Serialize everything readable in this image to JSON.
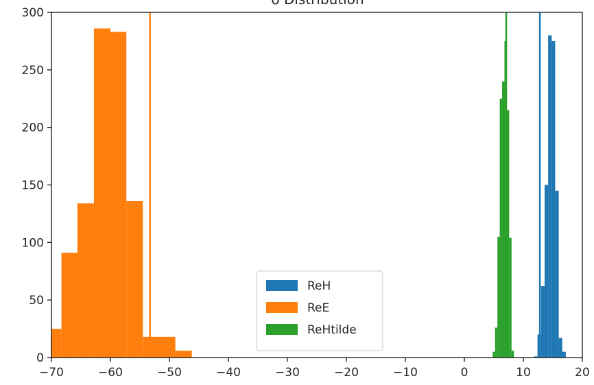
{
  "chart_data": {
    "type": "histogram",
    "title": "δ Distribution",
    "xlabel": "",
    "ylabel": "",
    "xlim": [
      -70,
      20
    ],
    "ylim": [
      0,
      300
    ],
    "xticks": [
      -70,
      -60,
      -50,
      -40,
      -30,
      -20,
      -10,
      0,
      10,
      20
    ],
    "yticks": [
      0,
      50,
      100,
      150,
      200,
      250,
      300
    ],
    "grid": false,
    "legend": {
      "position": "bottom-center"
    },
    "series": [
      {
        "name": "ReH",
        "color": "#1f77b4",
        "bins": [
          {
            "x0": 11.8,
            "x1": 12.4,
            "count": 1
          },
          {
            "x0": 12.4,
            "x1": 13.0,
            "count": 20
          },
          {
            "x0": 13.0,
            "x1": 13.6,
            "count": 62
          },
          {
            "x0": 13.6,
            "x1": 14.2,
            "count": 150
          },
          {
            "x0": 14.2,
            "x1": 14.8,
            "count": 280
          },
          {
            "x0": 14.8,
            "x1": 15.4,
            "count": 275
          },
          {
            "x0": 15.4,
            "x1": 16.0,
            "count": 145
          },
          {
            "x0": 16.0,
            "x1": 16.6,
            "count": 17
          },
          {
            "x0": 16.6,
            "x1": 17.2,
            "count": 5
          }
        ],
        "vline": 12.8
      },
      {
        "name": "ReE",
        "color": "#ff7f0e",
        "bins": [
          {
            "x0": -70.0,
            "x1": -68.3,
            "count": 25
          },
          {
            "x0": -68.3,
            "x1": -65.6,
            "count": 91
          },
          {
            "x0": -65.6,
            "x1": -62.8,
            "count": 134
          },
          {
            "x0": -62.8,
            "x1": -60.0,
            "count": 286
          },
          {
            "x0": -60.0,
            "x1": -57.3,
            "count": 283
          },
          {
            "x0": -57.3,
            "x1": -54.5,
            "count": 136
          },
          {
            "x0": -54.5,
            "x1": -51.8,
            "count": 18
          },
          {
            "x0": -51.8,
            "x1": -49.0,
            "count": 18
          },
          {
            "x0": -49.0,
            "x1": -46.2,
            "count": 6
          }
        ],
        "vline": -53.3
      },
      {
        "name": "ReHtilde",
        "color": "#2ca02c",
        "bins": [
          {
            "x0": 4.8,
            "x1": 5.2,
            "count": 5
          },
          {
            "x0": 5.2,
            "x1": 5.6,
            "count": 26
          },
          {
            "x0": 5.6,
            "x1": 6.0,
            "count": 105
          },
          {
            "x0": 6.0,
            "x1": 6.4,
            "count": 225
          },
          {
            "x0": 6.4,
            "x1": 6.8,
            "count": 240
          },
          {
            "x0": 6.8,
            "x1": 7.2,
            "count": 275
          },
          {
            "x0": 7.2,
            "x1": 7.6,
            "count": 215
          },
          {
            "x0": 7.6,
            "x1": 8.0,
            "count": 104
          },
          {
            "x0": 8.0,
            "x1": 8.4,
            "count": 6
          }
        ],
        "vline": 7.1
      }
    ]
  }
}
